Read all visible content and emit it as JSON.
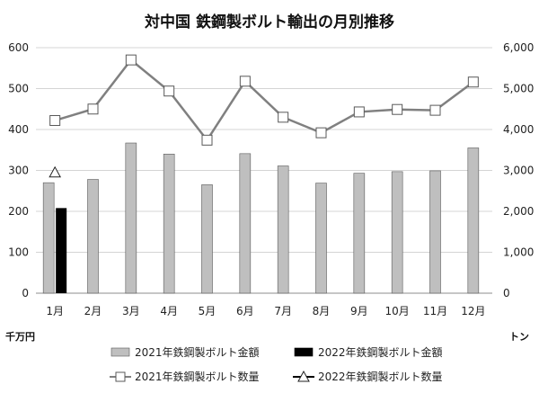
{
  "chart_data": {
    "type": "bar",
    "title": "対中国 鉄鋼製ボルト輸出の月別推移",
    "categories": [
      "1月",
      "2月",
      "3月",
      "4月",
      "5月",
      "6月",
      "7月",
      "8月",
      "9月",
      "10月",
      "11月",
      "12月"
    ],
    "left_axis": {
      "unit": "千万円",
      "ylim": [
        0,
        600
      ],
      "ticks": [
        "0",
        "100",
        "200",
        "300",
        "400",
        "500",
        "600"
      ]
    },
    "right_axis": {
      "unit": "トン",
      "ylim": [
        0,
        6000
      ],
      "ticks": [
        "0",
        "1,000",
        "2,000",
        "3,000",
        "4,000",
        "5,000",
        "6,000"
      ]
    },
    "grid": true,
    "legend_position": "bottom",
    "series": [
      {
        "name": "2021年鉄鋼製ボルト金額",
        "type": "bar",
        "axis": "left",
        "color": "#bfbfbf",
        "values": [
          270,
          278,
          367,
          340,
          265,
          341,
          311,
          269,
          293,
          297,
          299,
          355
        ]
      },
      {
        "name": "2022年鉄鋼製ボルト金額",
        "type": "bar",
        "axis": "left",
        "color": "#000000",
        "values": [
          208,
          null,
          null,
          null,
          null,
          null,
          null,
          null,
          null,
          null,
          null,
          null
        ]
      },
      {
        "name": "2021年鉄鋼製ボルト数量",
        "type": "line",
        "marker": "square",
        "axis": "right",
        "color": "#808080",
        "values": [
          4220,
          4500,
          5700,
          4940,
          3740,
          5180,
          4300,
          3920,
          4430,
          4490,
          4470,
          5160
        ]
      },
      {
        "name": "2022年鉄鋼製ボルト数量",
        "type": "line",
        "marker": "triangle",
        "axis": "right",
        "color": "#000000",
        "values": [
          2950,
          null,
          null,
          null,
          null,
          null,
          null,
          null,
          null,
          null,
          null,
          null
        ]
      }
    ]
  }
}
